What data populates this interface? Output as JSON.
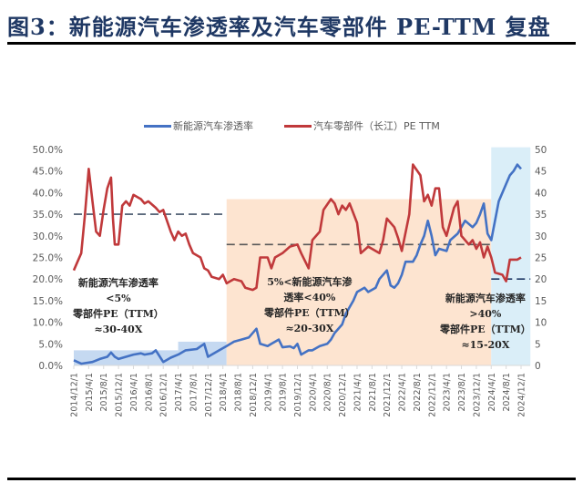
{
  "title": "图3：新能源汽车渗透率及汽车零部件 PE-TTM 复盘",
  "legend": {
    "items": [
      {
        "label": "新能源汽车渗透率",
        "color": "#4472c4"
      },
      {
        "label": "汽车零部件（长江）PE TTM",
        "color": "#c0393b"
      }
    ]
  },
  "annotations": [
    {
      "lines": [
        "新能源汽车渗透率",
        "<5%",
        "零部件PE（TTM）",
        "≈30-40X"
      ]
    },
    {
      "lines": [
        "5%<新能源汽车渗",
        "透率<40%",
        "零部件PE（TTM）",
        "≈20-30X"
      ]
    },
    {
      "lines": [
        "新能源汽车渗透率",
        ">40%",
        "零部件PE（TTM）",
        "≈15-20X"
      ]
    }
  ],
  "chart_data": {
    "type": "line",
    "title": "新能源汽车渗透率及汽车零部件 PE-TTM 复盘",
    "xlabel": "",
    "ylabel_left": "新能源汽车渗透率",
    "ylabel_right": "PE TTM",
    "left_axis": {
      "min": 0,
      "max": 50,
      "step": 5,
      "format": "percent",
      "tick_labels": [
        "0.0%",
        "5.0%",
        "10.0%",
        "15.0%",
        "20.0%",
        "25.0%",
        "30.0%",
        "35.0%",
        "40.0%",
        "45.0%",
        "50.0%"
      ]
    },
    "right_axis": {
      "min": 0,
      "max": 50,
      "step": 5,
      "tick_labels": [
        "0",
        "5",
        "10",
        "15",
        "20",
        "25",
        "30",
        "35",
        "40",
        "45",
        "50"
      ]
    },
    "x_tick_labels": [
      "2014/12/1",
      "2015/4/1",
      "2015/8/1",
      "2015/12/1",
      "2016/4/1",
      "2016/8/1",
      "2016/12/1",
      "2017/4/1",
      "2017/8/1",
      "2017/12/1",
      "2018/4/1",
      "2018/8/1",
      "2018/12/1",
      "2019/4/1",
      "2019/8/1",
      "2019/12/1",
      "2020/4/1",
      "2020/8/1",
      "2020/12/1",
      "2021/4/1",
      "2021/8/1",
      "2021/12/1",
      "2022/4/1",
      "2022/8/1",
      "2022/12/1",
      "2023/4/1",
      "2023/8/1",
      "2023/12/1",
      "2024/4/1",
      "2024/8/1",
      "2024/12/1"
    ],
    "x_months_total": 120,
    "grid": false,
    "legend_position": "top",
    "series": [
      {
        "name": "新能源汽车渗透率",
        "axis": "left",
        "unit": "%",
        "color": "#4472c4",
        "points_month_value": [
          [
            0,
            1.2
          ],
          [
            2,
            0.4
          ],
          [
            5,
            0.8
          ],
          [
            7,
            1.5
          ],
          [
            9,
            2.0
          ],
          [
            10,
            3.0
          ],
          [
            11,
            2.0
          ],
          [
            12,
            1.5
          ],
          [
            14,
            2.0
          ],
          [
            16,
            2.5
          ],
          [
            18,
            2.8
          ],
          [
            19,
            2.5
          ],
          [
            21,
            2.8
          ],
          [
            22,
            3.5
          ],
          [
            24,
            0.8
          ],
          [
            26,
            1.8
          ],
          [
            28,
            2.5
          ],
          [
            30,
            3.5
          ],
          [
            33,
            3.8
          ],
          [
            35,
            5.0
          ],
          [
            36,
            2.0
          ],
          [
            39,
            3.5
          ],
          [
            41,
            4.5
          ],
          [
            43,
            5.5
          ],
          [
            45,
            6.0
          ],
          [
            47,
            6.5
          ],
          [
            49,
            8.5
          ],
          [
            50,
            5.0
          ],
          [
            52,
            4.5
          ],
          [
            53,
            5.0
          ],
          [
            55,
            6.0
          ],
          [
            56,
            4.2
          ],
          [
            58,
            4.4
          ],
          [
            59,
            4.0
          ],
          [
            60,
            5.0
          ],
          [
            61,
            2.5
          ],
          [
            63,
            3.5
          ],
          [
            64,
            3.5
          ],
          [
            66,
            4.5
          ],
          [
            68,
            5.0
          ],
          [
            69,
            6.0
          ],
          [
            70,
            7.5
          ],
          [
            72,
            9.5
          ],
          [
            73,
            12.0
          ],
          [
            75,
            15.0
          ],
          [
            76,
            17.0
          ],
          [
            78,
            18.0
          ],
          [
            79,
            17.0
          ],
          [
            81,
            18.0
          ],
          [
            82,
            20.0
          ],
          [
            84,
            22.0
          ],
          [
            85,
            18.5
          ],
          [
            86,
            18.0
          ],
          [
            87,
            19.0
          ],
          [
            88,
            21.0
          ],
          [
            89,
            24.0
          ],
          [
            91,
            24.0
          ],
          [
            92,
            25.5
          ],
          [
            93,
            28.0
          ],
          [
            94,
            30.0
          ],
          [
            95,
            33.5
          ],
          [
            96,
            30.0
          ],
          [
            97,
            25.5
          ],
          [
            98,
            27.0
          ],
          [
            100,
            26.5
          ],
          [
            101,
            29.0
          ],
          [
            103,
            30.5
          ],
          [
            104,
            32.0
          ],
          [
            105,
            33.5
          ],
          [
            107,
            32.0
          ],
          [
            108,
            33.0
          ],
          [
            109,
            35.0
          ],
          [
            110,
            37.5
          ],
          [
            111,
            30.5
          ],
          [
            112,
            29.0
          ],
          [
            113,
            33.5
          ],
          [
            114,
            38.0
          ],
          [
            116,
            42.0
          ],
          [
            117,
            44.0
          ],
          [
            118,
            45.0
          ],
          [
            119,
            46.5
          ],
          [
            120,
            45.5
          ]
        ]
      },
      {
        "name": "汽车零部件（长江）PE TTM",
        "axis": "right",
        "unit": "x",
        "color": "#c0393b",
        "points_month_value": [
          [
            0,
            22.0
          ],
          [
            1,
            24.0
          ],
          [
            2,
            26.0
          ],
          [
            3,
            35.0
          ],
          [
            4,
            45.5
          ],
          [
            5,
            38.0
          ],
          [
            6,
            31.0
          ],
          [
            7,
            30.0
          ],
          [
            8,
            36.0
          ],
          [
            9,
            41.0
          ],
          [
            10,
            43.5
          ],
          [
            10.5,
            34.0
          ],
          [
            11,
            28.0
          ],
          [
            12,
            28.0
          ],
          [
            13,
            37.0
          ],
          [
            14,
            38.0
          ],
          [
            15,
            37.0
          ],
          [
            16,
            39.5
          ],
          [
            17,
            39.0
          ],
          [
            18,
            38.5
          ],
          [
            19,
            37.5
          ],
          [
            20,
            38.0
          ],
          [
            22,
            36.5
          ],
          [
            23,
            35.5
          ],
          [
            24,
            36.0
          ],
          [
            26,
            31.0
          ],
          [
            27,
            29.0
          ],
          [
            28,
            31.0
          ],
          [
            29,
            30.0
          ],
          [
            30,
            30.5
          ],
          [
            31,
            28.0
          ],
          [
            32,
            26.0
          ],
          [
            34,
            25.0
          ],
          [
            35,
            22.5
          ],
          [
            36,
            22.0
          ],
          [
            37,
            20.5
          ],
          [
            39,
            20.0
          ],
          [
            40,
            21.0
          ],
          [
            41,
            19.0
          ],
          [
            43,
            20.0
          ],
          [
            45,
            19.5
          ],
          [
            46,
            18.0
          ],
          [
            48,
            17.5
          ],
          [
            49,
            18.0
          ],
          [
            50,
            25.0
          ],
          [
            52,
            25.0
          ],
          [
            53,
            22.5
          ],
          [
            54,
            25.0
          ],
          [
            56,
            26.0
          ],
          [
            58,
            27.5
          ],
          [
            60,
            28.0
          ],
          [
            61,
            26.0
          ],
          [
            63,
            22.5
          ],
          [
            64,
            29.0
          ],
          [
            66,
            31.0
          ],
          [
            67,
            36.0
          ],
          [
            69,
            38.5
          ],
          [
            70,
            37.5
          ],
          [
            71,
            35.0
          ],
          [
            72,
            37.0
          ],
          [
            73,
            36.0
          ],
          [
            74,
            37.5
          ],
          [
            76,
            33.0
          ],
          [
            77,
            26.0
          ],
          [
            79,
            27.5
          ],
          [
            80,
            27.0
          ],
          [
            82,
            26.0
          ],
          [
            83,
            29.0
          ],
          [
            84,
            34.0
          ],
          [
            86,
            32.0
          ],
          [
            87,
            29.5
          ],
          [
            88,
            26.5
          ],
          [
            90,
            35.0
          ],
          [
            91,
            46.5
          ],
          [
            93,
            44.0
          ],
          [
            94,
            38.0
          ],
          [
            95,
            39.5
          ],
          [
            96,
            37.0
          ],
          [
            97,
            41.0
          ],
          [
            98,
            41.0
          ],
          [
            99,
            32.0
          ],
          [
            100,
            30.0
          ],
          [
            102,
            36.5
          ],
          [
            103,
            38.0
          ],
          [
            104,
            30.0
          ],
          [
            106,
            28.0
          ],
          [
            107,
            29.0
          ],
          [
            108,
            27.0
          ],
          [
            109,
            28.5
          ],
          [
            110,
            25.0
          ],
          [
            111,
            27.5
          ],
          [
            112,
            25.0
          ],
          [
            113,
            21.5
          ],
          [
            115,
            21.0
          ],
          [
            116,
            19.5
          ],
          [
            117,
            24.5
          ],
          [
            119,
            24.5
          ],
          [
            120,
            25.0
          ]
        ]
      }
    ],
    "shaded_regions": [
      {
        "from_month": 0,
        "to_month": 28,
        "top_left_axis": 3.5,
        "color": "#c5d9f1",
        "phase": "<5%"
      },
      {
        "from_month": 28,
        "to_month": 41,
        "top_left_axis": 5.5,
        "color": "#c5d9f1",
        "phase": "<5%"
      },
      {
        "from_month": 41,
        "to_month": 112,
        "top_left_axis": 38.5,
        "color": "#fde4d0",
        "phase": "5%-40%"
      },
      {
        "from_month": 112,
        "to_month": 122.5,
        "top_left_axis": 50.5,
        "color": "#daeef8",
        "phase": ">40%"
      }
    ],
    "reference_lines": [
      {
        "from_month": 0,
        "to_month": 41,
        "right_axis_value": 35,
        "style": "dashed",
        "color": "#44546a"
      },
      {
        "from_month": 41,
        "to_month": 112,
        "right_axis_value": 28,
        "style": "dashed",
        "color": "#595959"
      },
      {
        "from_month": 112,
        "to_month": 122.5,
        "right_axis_value": 20,
        "style": "dashed",
        "color": "#1f3864"
      }
    ]
  }
}
